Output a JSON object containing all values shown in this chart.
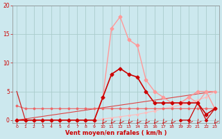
{
  "bg_color": "#cce8ee",
  "grid_color": "#aacccc",
  "xlabel": "Vent moyen/en rafales ( km/h )",
  "xlabel_color": "#cc0000",
  "tick_color": "#cc0000",
  "xlim": [
    -0.5,
    23.5
  ],
  "ylim": [
    -0.5,
    20
  ],
  "yticks": [
    0,
    5,
    10,
    15,
    20
  ],
  "xticks": [
    0,
    1,
    2,
    3,
    4,
    5,
    6,
    7,
    8,
    9,
    10,
    11,
    12,
    13,
    14,
    15,
    16,
    17,
    18,
    19,
    20,
    21,
    22,
    23
  ],
  "series": [
    {
      "x": [
        0,
        1,
        2,
        3,
        4,
        5,
        6,
        7,
        8,
        9,
        10,
        11,
        12,
        13,
        14,
        15,
        16,
        17,
        18,
        19,
        20,
        21,
        22,
        23
      ],
      "y": [
        0,
        0,
        0,
        0,
        0,
        0,
        0,
        0,
        0,
        0,
        4,
        16,
        18,
        14,
        13,
        7,
        5,
        4,
        3,
        3,
        4,
        5,
        5,
        2
      ],
      "color": "#ff9999",
      "linewidth": 1.0,
      "marker": "D",
      "markersize": 2.5,
      "zorder": 3
    },
    {
      "x": [
        0,
        1,
        2,
        3,
        4,
        5,
        6,
        7,
        8,
        9,
        10,
        11,
        12,
        13,
        14,
        15,
        16,
        17,
        18,
        19,
        20,
        21,
        22,
        23
      ],
      "y": [
        0,
        0,
        0,
        0,
        0,
        0,
        0,
        0,
        0,
        0,
        4,
        8,
        9,
        8,
        7.5,
        5,
        3,
        3,
        3,
        3,
        3,
        3,
        1,
        2
      ],
      "color": "#cc0000",
      "linewidth": 1.2,
      "marker": "D",
      "markersize": 2.5,
      "zorder": 4
    },
    {
      "x": [
        0,
        23
      ],
      "y": [
        0,
        5
      ],
      "color": "#dd4444",
      "linewidth": 0.8,
      "marker": null,
      "markersize": 0,
      "zorder": 2
    },
    {
      "x": [
        0,
        1,
        2,
        3,
        4,
        5,
        6,
        7,
        8,
        9,
        10,
        11,
        12,
        13,
        14,
        15,
        16,
        17,
        18,
        19,
        20,
        21,
        22,
        23
      ],
      "y": [
        0,
        0,
        0,
        0,
        0,
        0,
        0,
        0,
        0,
        0,
        0.2,
        0.4,
        0.6,
        0.8,
        1,
        1.3,
        1.6,
        2,
        2.3,
        2.6,
        3,
        3.5,
        4,
        5
      ],
      "color": "#ffbbbb",
      "linewidth": 0.8,
      "marker": "D",
      "markersize": 1.5,
      "zorder": 2
    },
    {
      "x": [
        0,
        1,
        2,
        3,
        4,
        5,
        6,
        7,
        8,
        9,
        10,
        11,
        12,
        13,
        14,
        15,
        16,
        17,
        18,
        19,
        20,
        21,
        22,
        23
      ],
      "y": [
        2.5,
        2,
        2,
        2,
        2,
        2,
        2,
        2,
        2,
        2,
        2,
        2,
        2,
        2,
        2,
        2,
        2,
        2,
        2,
        2,
        2,
        2,
        2,
        2
      ],
      "color": "#ee6666",
      "linewidth": 0.8,
      "marker": "D",
      "markersize": 1.5,
      "zorder": 2
    },
    {
      "x": [
        0,
        1
      ],
      "y": [
        5,
        0
      ],
      "color": "#cc2222",
      "linewidth": 0.9,
      "marker": null,
      "markersize": 0,
      "zorder": 2
    },
    {
      "x": [
        19,
        20,
        21,
        22,
        23
      ],
      "y": [
        0,
        0,
        3,
        0,
        2
      ],
      "color": "#cc0000",
      "linewidth": 0.9,
      "marker": "D",
      "markersize": 2,
      "zorder": 3
    },
    {
      "x": [
        19,
        20,
        21,
        22,
        23
      ],
      "y": [
        3,
        4,
        3,
        5,
        5
      ],
      "color": "#ff9999",
      "linewidth": 0.9,
      "marker": "D",
      "markersize": 2,
      "zorder": 3
    }
  ],
  "arrows_x": [
    10,
    11,
    12,
    13,
    14,
    15,
    16,
    17,
    18,
    20,
    21,
    23
  ],
  "arrow_color": "#cc0000",
  "spine_color": "#888888"
}
